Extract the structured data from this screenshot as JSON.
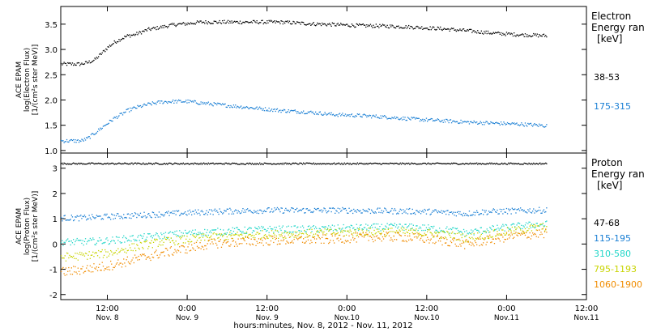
{
  "figure": {
    "xlabel": "hours:minutes, Nov.  8, 2012 - Nov. 11, 2012",
    "x_ticks": [
      {
        "t": 12,
        "time": "12:00",
        "day": "Nov. 8"
      },
      {
        "t": 24,
        "time": "0:00",
        "day": "Nov. 9"
      },
      {
        "t": 36,
        "time": "12:00",
        "day": "Nov. 9"
      },
      {
        "t": 48,
        "time": "0:00",
        "day": "Nov.10"
      },
      {
        "t": 60,
        "time": "12:00",
        "day": "Nov.10"
      },
      {
        "t": 72,
        "time": "0:00",
        "day": "Nov.11"
      },
      {
        "t": 84,
        "time": "12:00",
        "day": "Nov.11"
      }
    ]
  },
  "electron_panel": {
    "ylabel": [
      "ACE EPAM",
      "log(Electron Flux)",
      "[1/(cm²s ster MeV)]"
    ],
    "legend_title": [
      "Electron",
      "Energy ran",
      "[keV]"
    ],
    "series_labels": [
      {
        "label": "38-53",
        "color": "#000000"
      },
      {
        "label": "175-315",
        "color": "#1a7fd4"
      }
    ]
  },
  "proton_panel": {
    "ylabel": [
      "ACE EPAM",
      "log(Proton Flux)",
      "[1/(cm²s ster MeV)]"
    ],
    "legend_title": [
      "Proton",
      "Energy ran",
      "[keV]"
    ],
    "series_labels": [
      {
        "label": "47-68",
        "color": "#000000"
      },
      {
        "label": "115-195",
        "color": "#1a7fd4"
      },
      {
        "label": "310-580",
        "color": "#22d6c8"
      },
      {
        "label": "795-1193",
        "color": "#c8d400"
      },
      {
        "label": "1060-1900",
        "color": "#f08c00"
      }
    ]
  },
  "chart_data": [
    {
      "type": "scatter",
      "panel": "electron",
      "x_unit": "hours since Nov. 8, 2012 0:00",
      "xlim": [
        5,
        84
      ],
      "ylim": [
        0.95,
        3.85
      ],
      "yticks": [
        1.0,
        1.5,
        2.0,
        2.5,
        3.0,
        3.5
      ],
      "series": [
        {
          "name": "38-53",
          "color": "#000000",
          "x": [
            5,
            8,
            9,
            10,
            11,
            12,
            13,
            14,
            15,
            16,
            18,
            20,
            22,
            24,
            26,
            30,
            34,
            38,
            42,
            46,
            50,
            54,
            58,
            62,
            66,
            70,
            74,
            78
          ],
          "y": [
            2.72,
            2.72,
            2.75,
            2.8,
            2.92,
            3.05,
            3.15,
            3.22,
            3.28,
            3.3,
            3.4,
            3.45,
            3.5,
            3.52,
            3.55,
            3.55,
            3.55,
            3.55,
            3.52,
            3.5,
            3.48,
            3.47,
            3.45,
            3.42,
            3.38,
            3.33,
            3.3,
            3.28
          ]
        },
        {
          "name": "175-315",
          "color": "#1a7fd4",
          "x": [
            5,
            8,
            9,
            10,
            11,
            12,
            13,
            14,
            15,
            16,
            18,
            20,
            22,
            24,
            26,
            30,
            34,
            38,
            42,
            46,
            50,
            54,
            58,
            62,
            66,
            70,
            74,
            78
          ],
          "y": [
            1.2,
            1.2,
            1.25,
            1.35,
            1.45,
            1.55,
            1.65,
            1.72,
            1.8,
            1.85,
            1.92,
            1.97,
            1.98,
            1.98,
            1.95,
            1.9,
            1.85,
            1.8,
            1.77,
            1.72,
            1.7,
            1.67,
            1.63,
            1.6,
            1.57,
            1.55,
            1.53,
            1.5
          ]
        }
      ]
    },
    {
      "type": "scatter",
      "panel": "proton",
      "x_unit": "hours since Nov. 8, 2012 0:00",
      "xlim": [
        5,
        84
      ],
      "ylim": [
        -2.2,
        3.6
      ],
      "yticks": [
        -2,
        -1,
        0,
        1,
        2,
        3
      ],
      "series": [
        {
          "name": "47-68",
          "color": "#000000",
          "x": [
            5,
            15,
            25,
            35,
            45,
            55,
            65,
            78
          ],
          "y": [
            3.2,
            3.2,
            3.2,
            3.2,
            3.2,
            3.2,
            3.2,
            3.2
          ]
        },
        {
          "name": "115-195",
          "color": "#1a7fd4",
          "x": [
            5,
            8,
            12,
            16,
            20,
            24,
            28,
            32,
            36,
            40,
            44,
            48,
            52,
            56,
            60,
            64,
            66,
            68,
            72,
            76,
            78
          ],
          "y": [
            1.05,
            1.05,
            1.1,
            1.15,
            1.2,
            1.25,
            1.3,
            1.33,
            1.35,
            1.35,
            1.35,
            1.35,
            1.33,
            1.32,
            1.3,
            1.25,
            1.22,
            1.28,
            1.32,
            1.35,
            1.35
          ]
        },
        {
          "name": "310-580",
          "color": "#22d6c8",
          "x": [
            5,
            8,
            12,
            16,
            20,
            24,
            28,
            32,
            36,
            40,
            44,
            48,
            52,
            56,
            60,
            64,
            66,
            68,
            72,
            76,
            78
          ],
          "y": [
            0.1,
            0.1,
            0.15,
            0.25,
            0.35,
            0.45,
            0.5,
            0.55,
            0.6,
            0.6,
            0.62,
            0.65,
            0.68,
            0.7,
            0.65,
            0.55,
            0.45,
            0.55,
            0.68,
            0.78,
            0.8
          ]
        },
        {
          "name": "795-1193",
          "color": "#c8d400",
          "x": [
            5,
            8,
            12,
            16,
            20,
            24,
            28,
            32,
            36,
            40,
            44,
            48,
            52,
            56,
            60,
            64,
            66,
            68,
            72,
            76,
            78
          ],
          "y": [
            -0.5,
            -0.45,
            -0.35,
            -0.1,
            0.1,
            0.2,
            0.3,
            0.35,
            0.4,
            0.42,
            0.45,
            0.48,
            0.5,
            0.5,
            0.45,
            0.35,
            0.25,
            0.35,
            0.5,
            0.65,
            0.7
          ]
        },
        {
          "name": "1060-1900",
          "color": "#f08c00",
          "x": [
            5,
            8,
            12,
            16,
            20,
            24,
            28,
            32,
            36,
            40,
            44,
            48,
            52,
            56,
            60,
            64,
            66,
            68,
            72,
            76,
            78
          ],
          "y": [
            -1.1,
            -1.0,
            -0.85,
            -0.6,
            -0.35,
            -0.15,
            0.05,
            0.1,
            0.15,
            0.18,
            0.2,
            0.25,
            0.3,
            0.3,
            0.22,
            0.1,
            0.0,
            0.12,
            0.3,
            0.42,
            0.45
          ]
        }
      ]
    }
  ]
}
